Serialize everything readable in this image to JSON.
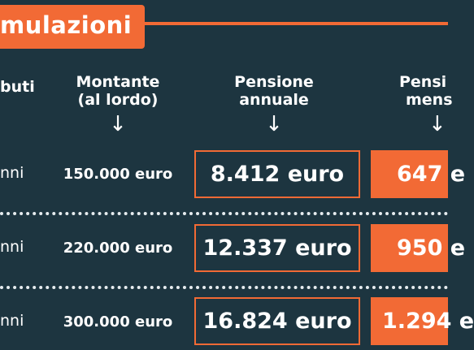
{
  "colors": {
    "accent": "#f26a35",
    "background": "#1d3540"
  },
  "title": "mulazioni",
  "headers": {
    "contributi": [
      "buti"
    ],
    "montante": [
      "Montante",
      "(al lordo)"
    ],
    "annuale": [
      "Pensione",
      "annuale"
    ],
    "mensile": [
      "Pensi",
      "mens"
    ],
    "arrow": "↓"
  },
  "rows": [
    {
      "label": "nni",
      "montante": "150.000 euro",
      "annuale": "8.412 euro",
      "mensile": "647 e"
    },
    {
      "label": "nni",
      "montante": "220.000 euro",
      "annuale": "12.337 euro",
      "mensile": "950 e"
    },
    {
      "label": "nni",
      "montante": "300.000 euro",
      "annuale": "16.824 euro",
      "mensile": "1.294 e"
    }
  ]
}
